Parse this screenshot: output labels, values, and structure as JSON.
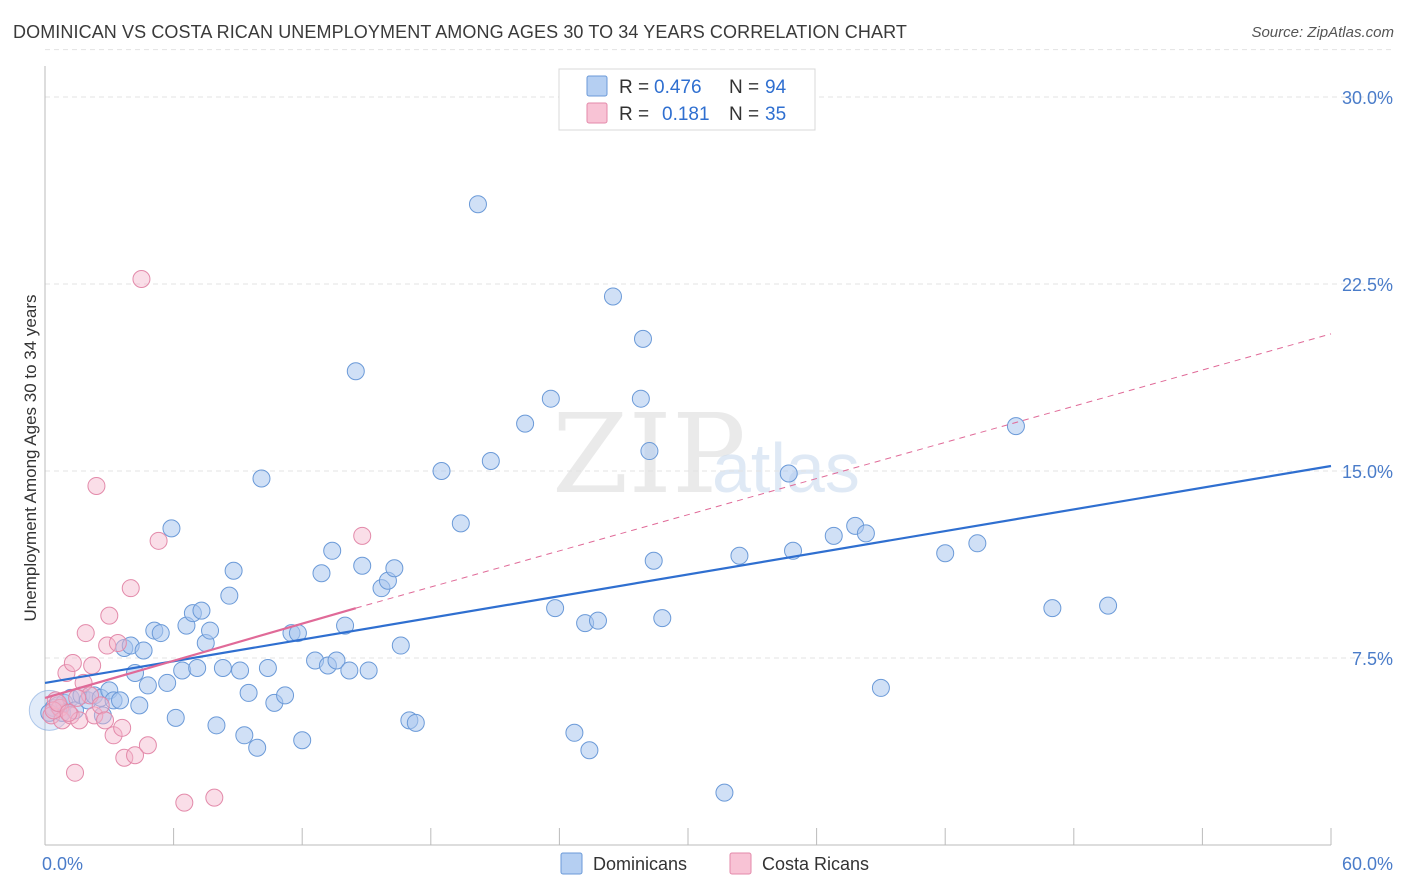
{
  "title": "DOMINICAN VS COSTA RICAN UNEMPLOYMENT AMONG AGES 30 TO 34 YEARS CORRELATION CHART",
  "source": "Source: ZipAtlas.com",
  "watermark": {
    "zip": "ZIP",
    "atlas": "atlas"
  },
  "colors": {
    "blue": "#2f6fd0",
    "blue_fill": "#a9c6ef",
    "pink": "#e06a98",
    "pink_fill": "#f4b6cb",
    "grid": "#e3e3e3",
    "tick_text": "#4a7cc9"
  },
  "legend": {
    "rows": [
      {
        "r_label": "R =",
        "r_value": "0.476",
        "n_label": "N =",
        "n_value": "94"
      },
      {
        "r_label": "R =",
        "r_value": "0.181",
        "n_label": "N =",
        "n_value": "35"
      }
    ]
  },
  "bottom_legend": [
    "Dominicans",
    "Costa Ricans"
  ],
  "chart_data": {
    "type": "scatter",
    "xlabel": "",
    "ylabel": "Unemployment Among Ages 30 to 34 years",
    "xlim": [
      0,
      60
    ],
    "ylim": [
      0,
      31
    ],
    "y_ticks": [
      7.5,
      15.0,
      22.5,
      30.0
    ],
    "y_tick_labels": [
      "7.5%",
      "15.0%",
      "22.5%",
      "30.0%"
    ],
    "x_tick_labels": [
      "0.0%",
      "60.0%"
    ],
    "series": [
      {
        "name": "Dominicans",
        "trend": {
          "x0": 0,
          "y0": 6.5,
          "x1": 60,
          "y1": 15.2
        },
        "points": [
          [
            0.4,
            5.5
          ],
          [
            0.6,
            5.6
          ],
          [
            0.8,
            5.3
          ],
          [
            0.9,
            5.7
          ],
          [
            1.2,
            5.9
          ],
          [
            1.4,
            5.4
          ],
          [
            1.7,
            6.0
          ],
          [
            2.0,
            5.8
          ],
          [
            2.3,
            6.0
          ],
          [
            2.6,
            5.9
          ],
          [
            2.7,
            5.2
          ],
          [
            3.0,
            6.2
          ],
          [
            3.2,
            5.8
          ],
          [
            3.5,
            5.8
          ],
          [
            3.7,
            7.9
          ],
          [
            4.0,
            8.0
          ],
          [
            4.2,
            6.9
          ],
          [
            4.4,
            5.6
          ],
          [
            4.6,
            7.8
          ],
          [
            4.8,
            6.4
          ],
          [
            5.1,
            8.6
          ],
          [
            5.4,
            8.5
          ],
          [
            5.7,
            6.5
          ],
          [
            5.9,
            12.7
          ],
          [
            6.1,
            5.1
          ],
          [
            6.4,
            7.0
          ],
          [
            6.6,
            8.8
          ],
          [
            6.9,
            9.3
          ],
          [
            7.1,
            7.1
          ],
          [
            7.3,
            9.4
          ],
          [
            7.5,
            8.1
          ],
          [
            7.7,
            8.6
          ],
          [
            8.0,
            4.8
          ],
          [
            8.3,
            7.1
          ],
          [
            8.6,
            10.0
          ],
          [
            8.8,
            11.0
          ],
          [
            9.1,
            7.0
          ],
          [
            9.3,
            4.4
          ],
          [
            9.5,
            6.1
          ],
          [
            9.9,
            3.9
          ],
          [
            10.1,
            14.7
          ],
          [
            10.4,
            7.1
          ],
          [
            10.7,
            5.7
          ],
          [
            11.2,
            6.0
          ],
          [
            11.5,
            8.5
          ],
          [
            11.8,
            8.5
          ],
          [
            12.0,
            4.2
          ],
          [
            12.6,
            7.4
          ],
          [
            12.9,
            10.9
          ],
          [
            13.2,
            7.2
          ],
          [
            13.4,
            11.8
          ],
          [
            13.6,
            7.4
          ],
          [
            14.0,
            8.8
          ],
          [
            14.2,
            7.0
          ],
          [
            14.5,
            19.0
          ],
          [
            14.8,
            11.2
          ],
          [
            15.1,
            7.0
          ],
          [
            15.7,
            10.3
          ],
          [
            16.0,
            10.6
          ],
          [
            16.3,
            11.1
          ],
          [
            16.6,
            8.0
          ],
          [
            17.0,
            5.0
          ],
          [
            17.3,
            4.9
          ],
          [
            18.5,
            15.0
          ],
          [
            19.4,
            12.9
          ],
          [
            20.2,
            25.7
          ],
          [
            20.8,
            15.4
          ],
          [
            22.4,
            16.9
          ],
          [
            23.6,
            17.9
          ],
          [
            23.8,
            9.5
          ],
          [
            24.7,
            4.5
          ],
          [
            25.2,
            8.9
          ],
          [
            25.4,
            3.8
          ],
          [
            25.8,
            9.0
          ],
          [
            26.5,
            22.0
          ],
          [
            27.8,
            17.9
          ],
          [
            27.9,
            20.3
          ],
          [
            28.2,
            15.8
          ],
          [
            28.4,
            11.4
          ],
          [
            28.8,
            9.1
          ],
          [
            31.7,
            2.1
          ],
          [
            32.4,
            11.6
          ],
          [
            34.7,
            14.9
          ],
          [
            34.9,
            11.8
          ],
          [
            36.8,
            12.4
          ],
          [
            37.8,
            12.8
          ],
          [
            38.3,
            12.5
          ],
          [
            39.0,
            6.3
          ],
          [
            42.0,
            11.7
          ],
          [
            43.5,
            12.1
          ],
          [
            45.3,
            16.8
          ],
          [
            47.0,
            9.5
          ],
          [
            49.6,
            9.6
          ],
          [
            0.2,
            5.3
          ]
        ]
      },
      {
        "name": "Costa Ricans",
        "trend": {
          "x0": 0,
          "y0": 5.9,
          "x1": 14.5,
          "y1": 9.5
        },
        "trend_extension": {
          "x0": 14.5,
          "y0": 9.5,
          "x1": 60,
          "y1": 20.5
        },
        "points": [
          [
            0.3,
            5.2
          ],
          [
            0.5,
            5.8
          ],
          [
            0.7,
            5.5
          ],
          [
            0.8,
            5.0
          ],
          [
            1.0,
            6.9
          ],
          [
            1.2,
            5.2
          ],
          [
            1.3,
            7.3
          ],
          [
            1.4,
            2.9
          ],
          [
            1.6,
            5.0
          ],
          [
            1.8,
            6.5
          ],
          [
            1.9,
            8.5
          ],
          [
            2.1,
            6.0
          ],
          [
            2.2,
            7.2
          ],
          [
            2.3,
            5.2
          ],
          [
            2.4,
            14.4
          ],
          [
            2.6,
            5.6
          ],
          [
            2.8,
            5.0
          ],
          [
            2.9,
            8.0
          ],
          [
            3.0,
            9.2
          ],
          [
            3.2,
            4.4
          ],
          [
            3.4,
            8.1
          ],
          [
            3.6,
            4.7
          ],
          [
            3.7,
            3.5
          ],
          [
            4.0,
            10.3
          ],
          [
            4.2,
            3.6
          ],
          [
            4.5,
            22.7
          ],
          [
            4.8,
            4.0
          ],
          [
            5.3,
            12.2
          ],
          [
            6.5,
            1.7
          ],
          [
            7.9,
            1.9
          ],
          [
            14.8,
            12.4
          ],
          [
            0.4,
            5.4
          ],
          [
            0.6,
            5.7
          ],
          [
            1.1,
            5.3
          ],
          [
            1.5,
            5.9
          ]
        ]
      }
    ]
  }
}
